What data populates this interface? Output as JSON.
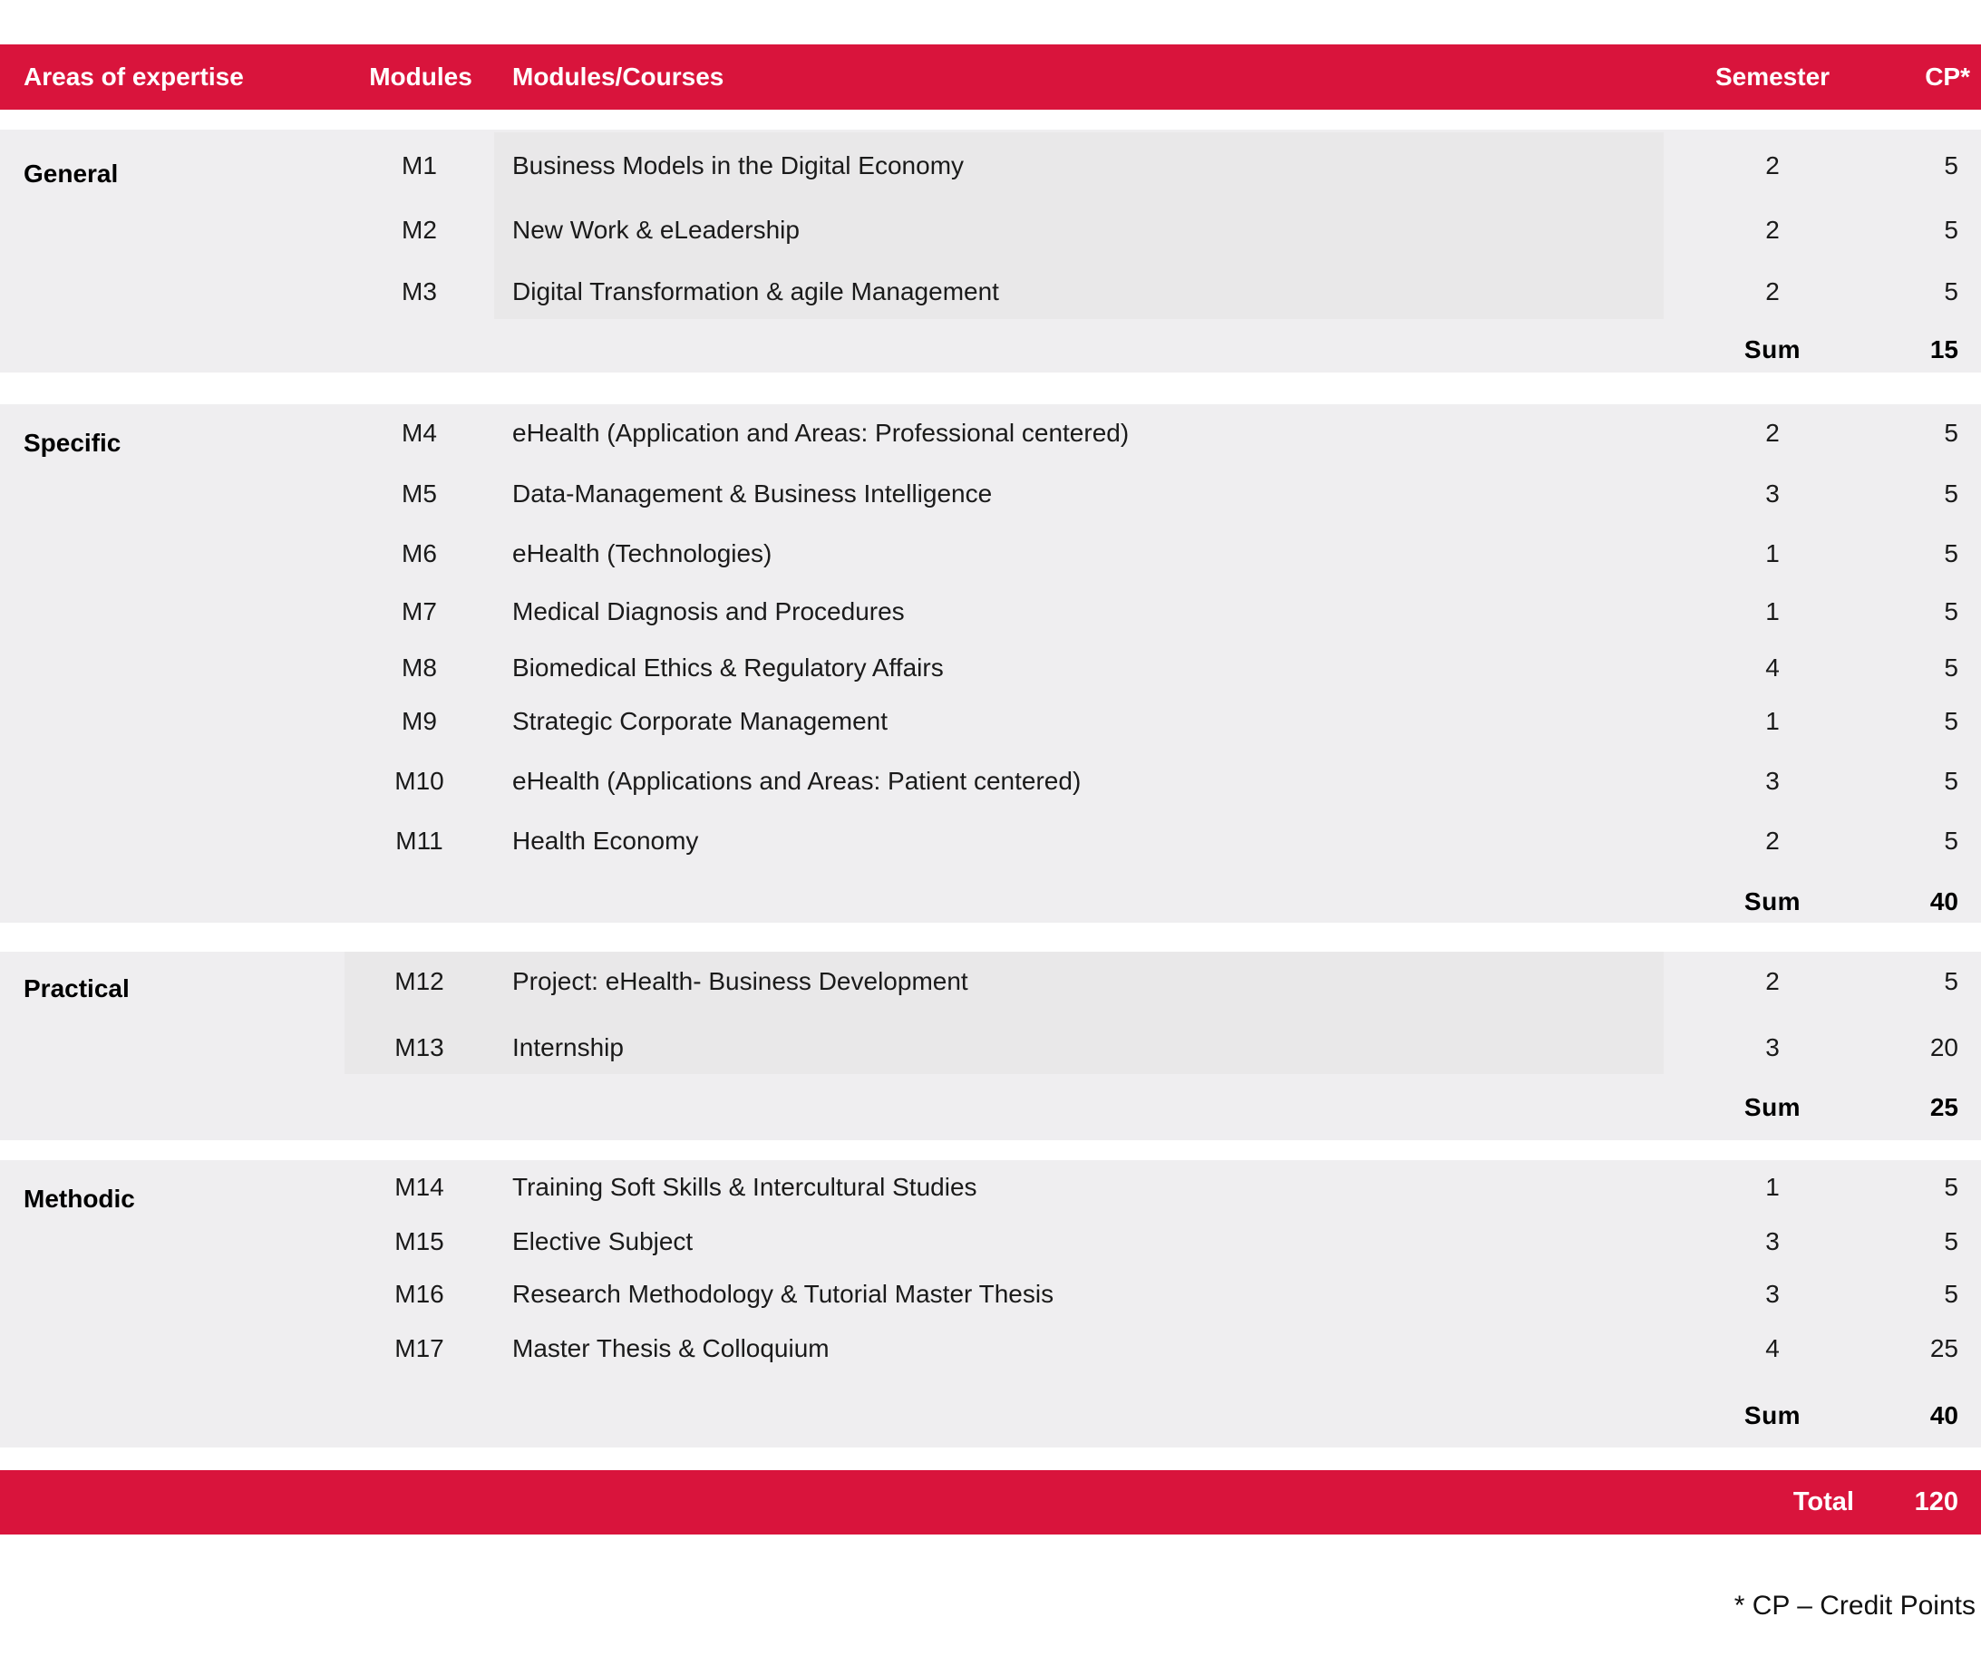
{
  "header": {
    "areas": "Areas of expertise",
    "modules": "Modules",
    "courses": "Modules/Courses",
    "semester": "Semester",
    "cp": "CP*"
  },
  "sections": [
    {
      "name": "General",
      "sum_label": "Sum",
      "sum": "15",
      "rows": [
        {
          "module": "M1",
          "course": "Business Models in the Digital Economy",
          "semester": "2",
          "cp": "5"
        },
        {
          "module": "M2",
          "course": "New Work & eLeadership",
          "semester": "2",
          "cp": "5"
        },
        {
          "module": "M3",
          "course": "Digital Transformation & agile Management",
          "semester": "2",
          "cp": "5"
        }
      ]
    },
    {
      "name": "Specific",
      "sum_label": "Sum",
      "sum": "40",
      "rows": [
        {
          "module": "M4",
          "course": "eHealth (Application and Areas: Professional centered)",
          "semester": "2",
          "cp": "5"
        },
        {
          "module": "M5",
          "course": "Data-Management & Business Intelligence",
          "semester": "3",
          "cp": "5"
        },
        {
          "module": "M6",
          "course": "eHealth (Technologies)",
          "semester": "1",
          "cp": "5"
        },
        {
          "module": "M7",
          "course": "Medical Diagnosis and Procedures",
          "semester": "1",
          "cp": "5"
        },
        {
          "module": "M8",
          "course": "Biomedical Ethics & Regulatory Affairs",
          "semester": "4",
          "cp": "5"
        },
        {
          "module": "M9",
          "course": "Strategic Corporate Management",
          "semester": "1",
          "cp": "5"
        },
        {
          "module": "M10",
          "course": "eHealth (Applications and Areas: Patient centered)",
          "semester": "3",
          "cp": "5"
        },
        {
          "module": "M11",
          "course": "Health Economy",
          "semester": "2",
          "cp": "5"
        }
      ]
    },
    {
      "name": "Practical",
      "sum_label": "Sum",
      "sum": "25",
      "rows": [
        {
          "module": "M12",
          "course": "Project: eHealth- Business Development",
          "semester": "2",
          "cp": "5"
        },
        {
          "module": "M13",
          "course": "Internship",
          "semester": "3",
          "cp": "20"
        }
      ]
    },
    {
      "name": "Methodic",
      "sum_label": "Sum",
      "sum": "40",
      "rows": [
        {
          "module": "M14",
          "course": "Training Soft Skills & Intercultural Studies",
          "semester": "1",
          "cp": "5"
        },
        {
          "module": "M15",
          "course": "Elective Subject",
          "semester": "3",
          "cp": "5"
        },
        {
          "module": "M16",
          "course": "Research Methodology & Tutorial Master Thesis",
          "semester": "3",
          "cp": "5"
        },
        {
          "module": "M17",
          "course": "Master Thesis & Colloquium",
          "semester": "4",
          "cp": "25"
        }
      ]
    }
  ],
  "total": {
    "label": "Total",
    "value": "120"
  },
  "footnote": "* CP – Credit Points",
  "colors": {
    "accent_red": "#d9143c",
    "section_background": "#efeef0",
    "inner_panel_background": "#e9e8e9",
    "text": "#1a1a1a",
    "header_text": "#ffffff"
  }
}
